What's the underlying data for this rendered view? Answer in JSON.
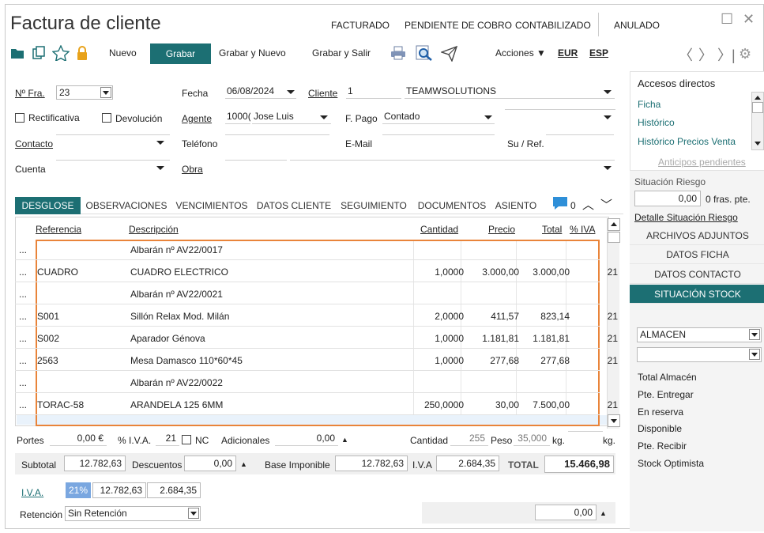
{
  "window": {
    "title": "Factura de cliente"
  },
  "status_tabs": [
    "FACTURADO",
    "PENDIENTE DE COBRO",
    "CONTABILIZADO",
    "ANULADO"
  ],
  "toolbar": {
    "nuevo": "Nuevo",
    "grabar": "Grabar",
    "grabar_nuevo": "Grabar y Nuevo",
    "grabar_salir": "Grabar y Salir",
    "acciones": "Acciones",
    "eur": "EUR",
    "esp": "ESP"
  },
  "header": {
    "nfra_label": "Nº Fra.",
    "nfra_value": "23",
    "fecha_label": "Fecha",
    "fecha_value": "06/08/2024",
    "cliente_label": "Cliente",
    "cliente_code": "1",
    "cliente_name": "TEAMWSOLUTIONS",
    "rectificativa_label": "Rectificativa",
    "devolucion_label": "Devolución",
    "agente_label": "Agente",
    "agente_code": "1000(",
    "agente_name": "Jose Luis",
    "fpago_label": "F. Pago",
    "fpago_value": "Contado",
    "contacto_label": "Contacto",
    "telefono_label": "Teléfono",
    "email_label": "E-Mail",
    "suref_label": "Su / Ref.",
    "cuenta_label": "Cuenta",
    "obra_label": "Obra"
  },
  "tabs": [
    "DESGLOSE",
    "OBSERVACIONES",
    "VENCIMIENTOS",
    "DATOS CLIENTE",
    "SEGUIMIENTO",
    "DOCUMENTOS",
    "ASIENTO"
  ],
  "comments_count": "0",
  "grid": {
    "headers": {
      "ref": "Referencia",
      "desc": "Descripción",
      "cant": "Cantidad",
      "precio": "Precio",
      "total": "Total",
      "iva": "% IVA"
    },
    "rows": [
      {
        "dots": "...",
        "ref": "",
        "desc": "Albarán nº AV22/0017",
        "cant": "",
        "precio": "",
        "total": "",
        "iva": ""
      },
      {
        "dots": "...",
        "ref": "CUADRO",
        "desc": "CUADRO ELECTRICO",
        "cant": "1,0000",
        "precio": "3.000,00",
        "total": "3.000,00",
        "iva": "21"
      },
      {
        "dots": "...",
        "ref": "",
        "desc": "Albarán nº AV22/0021",
        "cant": "",
        "precio": "",
        "total": "",
        "iva": ""
      },
      {
        "dots": "...",
        "ref": "S001",
        "desc": "Sillón Relax Mod. Milán",
        "cant": "2,0000",
        "precio": "411,57",
        "total": "823,14",
        "iva": "21"
      },
      {
        "dots": "...",
        "ref": "S002",
        "desc": "Aparador Génova",
        "cant": "1,0000",
        "precio": "1.181,81",
        "total": "1.181,81",
        "iva": "21"
      },
      {
        "dots": "...",
        "ref": "2563",
        "desc": "Mesa Damasco 110*60*45",
        "cant": "1,0000",
        "precio": "277,68",
        "total": "277,68",
        "iva": "21"
      },
      {
        "dots": "...",
        "ref": "",
        "desc": "Albarán nº AV22/0022",
        "cant": "",
        "precio": "",
        "total": "",
        "iva": ""
      },
      {
        "dots": "...",
        "ref": "TORAC-58",
        "desc": "ARANDELA 125 6MM",
        "cant": "250,0000",
        "precio": "30,00",
        "total": "7.500,00",
        "iva": "21"
      }
    ]
  },
  "footer": {
    "portes_label": "Portes",
    "portes_value": "0,00 €",
    "piva_label": "% I.V.A.",
    "piva_value": "21",
    "nc_label": "NC",
    "adicionales_label": "Adicionales",
    "adicionales_value": "0,00",
    "cantidad_label": "Cantidad",
    "cantidad_value": "255",
    "peso_label": "Peso",
    "peso_value": "35,000",
    "kg1": "kg.",
    "kg2": "kg.",
    "subtotal_label": "Subtotal",
    "subtotal_value": "12.782,63",
    "descuentos_label": "Descuentos",
    "descuentos_value": "0,00",
    "base_label": "Base Imponible",
    "base_value": "12.782,63",
    "iva_label": "I.V.A",
    "iva_value": "2.684,35",
    "total_label": "TOTAL",
    "total_value": "15.466,98",
    "iva_link": "I.V.A.",
    "iva_pct": "21%",
    "iva_base": "12.782,63",
    "iva_amount": "2.684,35",
    "retencion_label": "Retención",
    "retencion_value": "Sin Retención",
    "retencion_amount": "0,00"
  },
  "sidebar": {
    "title": "Accesos directos",
    "links": [
      "Ficha",
      "Histórico",
      "Histórico Precios Venta"
    ],
    "anticipos": "Anticipos pendientes",
    "riesgo_label": "Situación Riesgo",
    "riesgo_value": "0,00",
    "fras_pte": "0 fras. pte.",
    "detalle_riesgo": "Detalle Situación Riesgo",
    "buttons": [
      "ARCHIVOS ADJUNTOS",
      "DATOS FICHA",
      "DATOS CONTACTO",
      "SITUACIÓN STOCK"
    ],
    "almacen_value": "ALMACEN",
    "stock_labels": [
      "Total Almacén",
      "Pte. Entregar",
      "En reserva",
      "Disponible",
      "Pte. Recibir",
      "Stock Optimista"
    ]
  },
  "colors": {
    "accent": "#1c6f73",
    "selection": "#e9843a",
    "link": "#1c6f73"
  }
}
